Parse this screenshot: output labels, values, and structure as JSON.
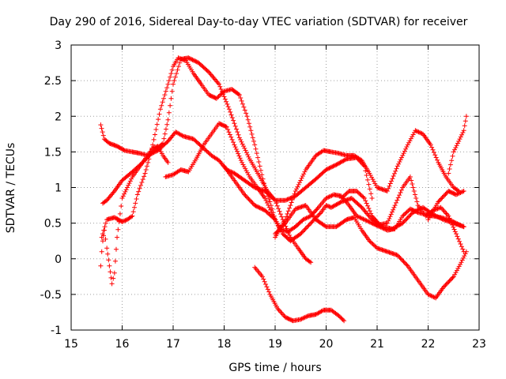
{
  "chart_data": {
    "type": "scatter",
    "title": "Day 290 of 2016, Sidereal Day-to-day VTEC variation (SDTVAR) for receiver",
    "xlabel": "GPS time / hours",
    "ylabel": "SDTVAR / TECUs",
    "xlim": [
      15,
      23
    ],
    "ylim": [
      -1,
      3
    ],
    "xticks": [
      15,
      16,
      17,
      18,
      19,
      20,
      21,
      22,
      23
    ],
    "yticks": [
      -1,
      -0.5,
      0,
      0.5,
      1,
      1.5,
      2,
      2.5,
      3
    ],
    "grid": true,
    "marker": "plus",
    "color": "#ff0000",
    "series": [
      {
        "x": [
          15.58,
          15.65,
          15.75,
          15.9,
          16.05,
          16.2,
          16.35,
          16.5,
          16.7,
          16.9,
          17.05,
          17.2,
          17.4,
          17.6,
          17.75,
          17.9,
          18.05,
          18.2,
          18.4,
          18.6,
          18.8,
          19.0,
          19.15,
          19.3,
          19.45,
          19.6,
          19.7
        ],
        "y": [
          1.88,
          1.68,
          1.62,
          1.58,
          1.52,
          1.5,
          1.48,
          1.45,
          1.52,
          1.65,
          1.78,
          1.72,
          1.68,
          1.55,
          1.45,
          1.38,
          1.25,
          1.2,
          1.1,
          1.0,
          0.95,
          0.82,
          0.55,
          0.3,
          0.15,
          0.0,
          -0.05
        ]
      },
      {
        "x": [
          15.62,
          15.7,
          15.85,
          16.0,
          16.2,
          16.4,
          16.6,
          16.8,
          16.9,
          17.0,
          17.15,
          17.3,
          17.5,
          17.7,
          17.9,
          18.1,
          18.3,
          18.5,
          18.7,
          18.85,
          19.0,
          19.2,
          19.4,
          19.6,
          19.8,
          20.0,
          20.2,
          20.4,
          20.6,
          20.75,
          20.9
        ],
        "y": [
          0.78,
          0.82,
          0.95,
          1.1,
          1.22,
          1.35,
          1.5,
          1.62,
          1.95,
          2.45,
          2.8,
          2.82,
          2.75,
          2.62,
          2.45,
          2.1,
          1.7,
          1.4,
          1.15,
          0.95,
          0.82,
          0.82,
          0.88,
          1.0,
          1.12,
          1.25,
          1.32,
          1.4,
          1.42,
          1.3,
          0.85
        ]
      },
      {
        "x": [
          15.6,
          15.7,
          15.85,
          16.0,
          16.1,
          16.2,
          16.3,
          16.45,
          16.6,
          16.75,
          16.9,
          17.0,
          17.1,
          17.25,
          17.4,
          17.55,
          17.7,
          17.85,
          18.0,
          18.15,
          18.3,
          18.45,
          18.6,
          18.7,
          18.8,
          18.9,
          19.0,
          19.1
        ],
        "y": [
          0.3,
          0.55,
          0.58,
          0.52,
          0.55,
          0.6,
          0.9,
          1.2,
          1.6,
          2.1,
          2.45,
          2.7,
          2.82,
          2.78,
          2.6,
          2.45,
          2.3,
          2.25,
          2.35,
          2.38,
          2.3,
          2.0,
          1.6,
          1.3,
          1.0,
          0.8,
          0.55,
          0.4
        ]
      },
      {
        "x": [
          15.58,
          15.6,
          15.62,
          15.65,
          15.7,
          15.75,
          15.8,
          15.85,
          15.9,
          16.0,
          16.1,
          16.2,
          16.3,
          16.4,
          16.5,
          16.6,
          16.7,
          16.8,
          16.9
        ],
        "y": [
          -0.1,
          0.1,
          0.25,
          0.4,
          0.15,
          -0.1,
          -0.35,
          -0.2,
          0.3,
          0.85,
          1.0,
          1.15,
          1.25,
          1.35,
          1.45,
          1.55,
          1.58,
          1.45,
          1.35
        ]
      },
      {
        "x": [
          16.85,
          17.0,
          17.15,
          17.3,
          17.45,
          17.6,
          17.75,
          17.9,
          18.05,
          18.2,
          18.35,
          18.5,
          18.65,
          18.8,
          18.95,
          19.1,
          19.25,
          19.4,
          19.55,
          19.7,
          19.85,
          20.0,
          20.15,
          20.3,
          20.45,
          20.6,
          20.75,
          20.9,
          21.05,
          21.2,
          21.35,
          21.5,
          21.65,
          21.8,
          21.95,
          22.1,
          22.25,
          22.4,
          22.55,
          22.7
        ],
        "y": [
          1.15,
          1.18,
          1.25,
          1.22,
          1.4,
          1.6,
          1.75,
          1.9,
          1.85,
          1.6,
          1.35,
          1.15,
          1.0,
          0.85,
          0.62,
          0.42,
          0.38,
          0.45,
          0.55,
          0.6,
          0.72,
          0.85,
          0.9,
          0.88,
          0.75,
          0.6,
          0.55,
          0.5,
          0.45,
          0.4,
          0.42,
          0.6,
          0.7,
          0.65,
          0.62,
          0.6,
          0.58,
          0.55,
          0.5,
          0.45
        ]
      },
      {
        "x": [
          18.0,
          18.2,
          18.4,
          18.6,
          18.8,
          19.0,
          19.15,
          19.3,
          19.5,
          19.7,
          19.9,
          20.0,
          20.1,
          20.3,
          20.5,
          20.7,
          20.9,
          21.1,
          21.3,
          21.5,
          21.7,
          21.9,
          22.1,
          22.3,
          22.5,
          22.7
        ],
        "y": [
          1.3,
          1.1,
          0.9,
          0.75,
          0.68,
          0.55,
          0.35,
          0.25,
          0.35,
          0.5,
          0.65,
          0.75,
          0.72,
          0.8,
          0.85,
          0.72,
          0.55,
          0.45,
          0.42,
          0.5,
          0.65,
          0.72,
          0.62,
          0.55,
          0.5,
          0.45
        ]
      },
      {
        "x": [
          19.0,
          19.2,
          19.4,
          19.6,
          19.8,
          19.95,
          20.1,
          20.25,
          20.4,
          20.55,
          20.7,
          20.85,
          21.0,
          21.2,
          21.4,
          21.6,
          21.75,
          21.9,
          22.05,
          22.2,
          22.35,
          22.5,
          22.6
        ],
        "y": [
          0.3,
          0.55,
          0.95,
          1.25,
          1.45,
          1.52,
          1.5,
          1.48,
          1.45,
          1.45,
          1.38,
          1.2,
          1.0,
          0.95,
          1.3,
          1.6,
          1.8,
          1.75,
          1.6,
          1.35,
          1.15,
          1.0,
          0.95
        ]
      },
      {
        "x": [
          19.0,
          19.2,
          19.4,
          19.6,
          19.8,
          20.0,
          20.2,
          20.4,
          20.55,
          20.7,
          20.85,
          21.0,
          21.2,
          21.4,
          21.6,
          21.8,
          22.0,
          22.15,
          22.3,
          22.5,
          22.65,
          22.75
        ],
        "y": [
          0.35,
          0.5,
          0.7,
          0.75,
          0.55,
          0.45,
          0.45,
          0.55,
          0.58,
          0.4,
          0.25,
          0.15,
          0.1,
          0.05,
          -0.1,
          -0.3,
          -0.5,
          -0.55,
          -0.4,
          -0.25,
          -0.05,
          0.1
        ]
      },
      {
        "x": [
          20.3,
          20.45,
          20.6,
          20.75,
          20.9,
          21.05,
          21.2,
          21.35,
          21.5,
          21.65,
          21.8,
          21.95,
          22.1,
          22.25,
          22.4,
          22.55,
          22.7
        ],
        "y": [
          0.85,
          0.95,
          0.95,
          0.85,
          0.6,
          0.48,
          0.5,
          0.75,
          1.0,
          1.15,
          0.75,
          0.6,
          0.68,
          0.72,
          0.6,
          0.35,
          0.1
        ]
      },
      {
        "x": [
          22.0,
          22.2,
          22.4,
          22.55,
          22.7
        ],
        "y": [
          0.55,
          0.8,
          0.95,
          0.9,
          0.95
        ]
      },
      {
        "x": [
          22.4,
          22.5,
          22.6,
          22.7,
          22.75
        ],
        "y": [
          1.2,
          1.5,
          1.65,
          1.8,
          2.0
        ]
      },
      {
        "x": [
          18.6,
          18.75,
          18.9,
          19.05,
          19.2,
          19.35,
          19.5,
          19.65,
          19.8,
          19.95,
          20.1,
          20.25,
          20.35
        ],
        "y": [
          -0.12,
          -0.25,
          -0.5,
          -0.7,
          -0.82,
          -0.87,
          -0.85,
          -0.8,
          -0.78,
          -0.72,
          -0.72,
          -0.8,
          -0.87
        ]
      }
    ]
  }
}
